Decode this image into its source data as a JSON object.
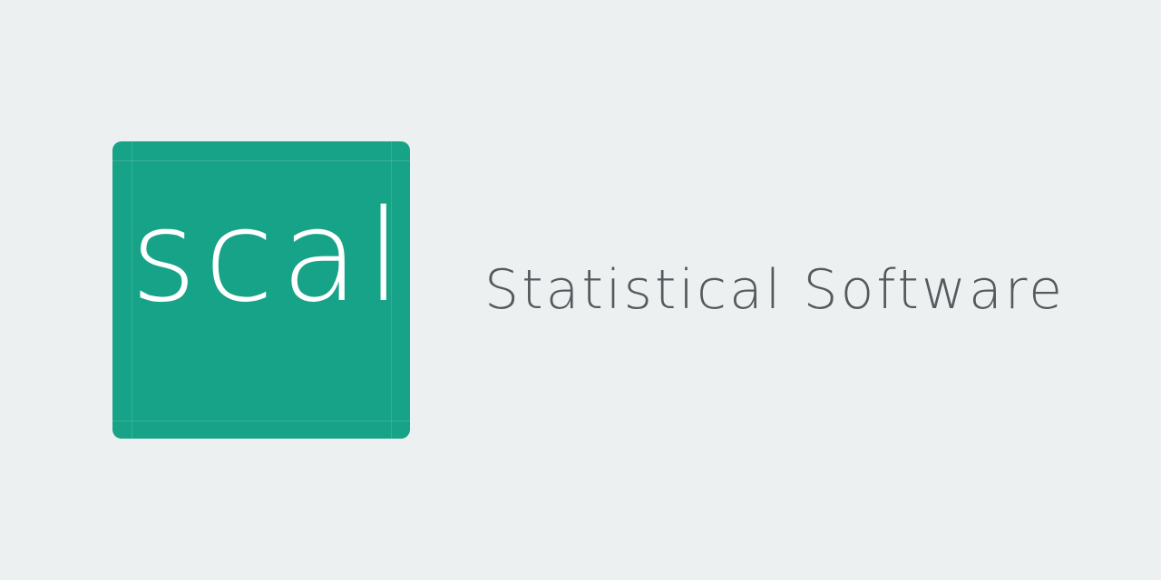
{
  "logo": {
    "text": "scal",
    "background_color": "#17a387",
    "text_color": "#ffffff"
  },
  "tagline": "Statistical Software",
  "colors": {
    "page_background": "#ecf0f1",
    "tagline_color": "#555a5e"
  }
}
